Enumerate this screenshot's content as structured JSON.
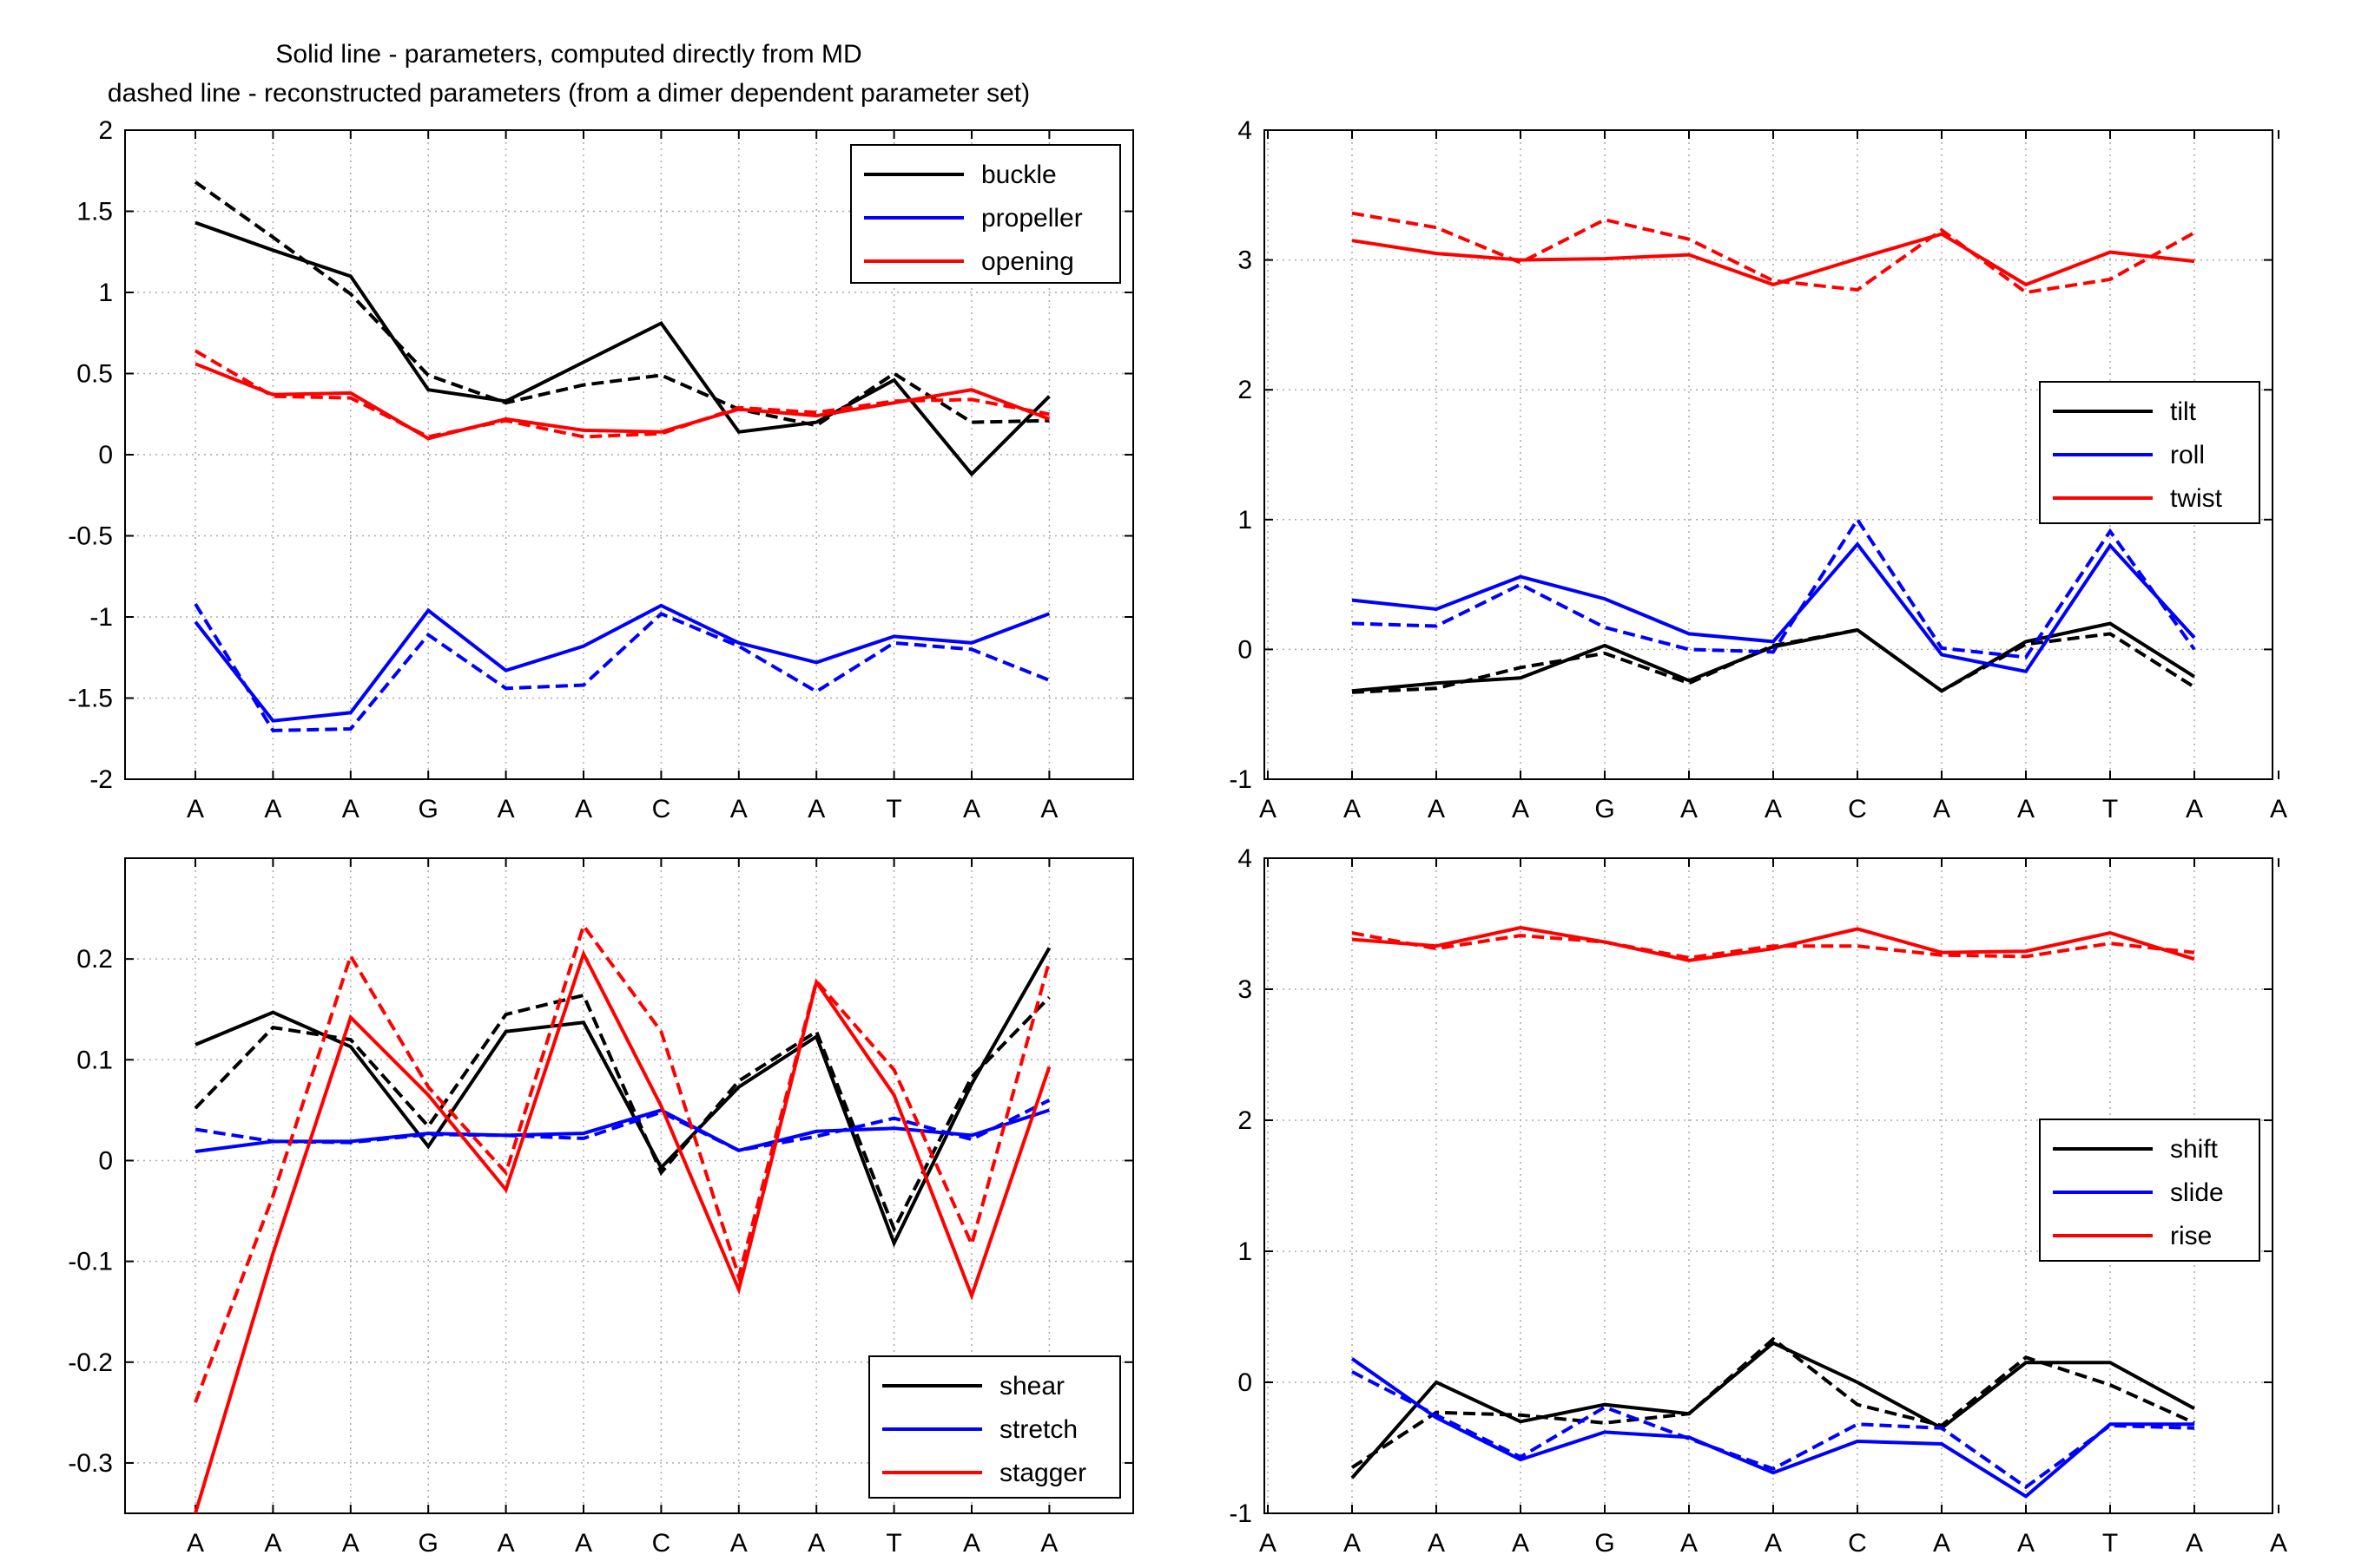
{
  "figure_title": {
    "line1": "Solid line - parameters, computed directly from MD",
    "line2": "dashed line - reconstructed parameters (from a dimer dependent parameter set)"
  },
  "chart_data": [
    {
      "type": "line",
      "id": "base-pair-rotational",
      "categories": [
        "A",
        "A",
        "A",
        "G",
        "A",
        "A",
        "C",
        "A",
        "A",
        "T",
        "A",
        "A"
      ],
      "ylim": [
        -2,
        2
      ],
      "yticks": [
        -2,
        -1.5,
        -1,
        -0.5,
        0,
        0.5,
        1,
        1.5,
        2
      ],
      "ytick_labels": [
        "-2",
        "-1.5",
        "-1",
        "-0.5",
        "0",
        "0.5",
        "1",
        "1.5",
        "2"
      ],
      "xstart": 1,
      "grid": true,
      "legend_position": "top-right",
      "series": [
        {
          "name": "buckle",
          "color": "#000000",
          "style": "solid",
          "x": [
            1,
            2,
            3,
            4,
            5,
            6,
            7,
            8,
            9,
            10,
            11,
            12
          ],
          "values": [
            1.43,
            1.26,
            1.1,
            0.4,
            0.33,
            0.57,
            0.81,
            0.14,
            0.2,
            0.46,
            -0.12,
            0.36
          ]
        },
        {
          "name": "buckle",
          "color": "#000000",
          "style": "dashed",
          "x": [
            1,
            2,
            3,
            4,
            5,
            6,
            7,
            8,
            9,
            10,
            11,
            12
          ],
          "values": [
            1.68,
            1.34,
            0.99,
            0.49,
            0.32,
            0.43,
            0.49,
            0.28,
            0.18,
            0.5,
            0.2,
            0.21
          ]
        },
        {
          "name": "propeller",
          "color": "#0000ff",
          "style": "solid",
          "x": [
            1,
            2,
            3,
            4,
            5,
            6,
            7,
            8,
            9,
            10,
            11,
            12
          ],
          "values": [
            -1.03,
            -1.64,
            -1.59,
            -0.96,
            -1.33,
            -1.18,
            -0.93,
            -1.16,
            -1.28,
            -1.12,
            -1.16,
            -0.98
          ]
        },
        {
          "name": "propeller",
          "color": "#0000ff",
          "style": "dashed",
          "x": [
            1,
            2,
            3,
            4,
            5,
            6,
            7,
            8,
            9,
            10,
            11,
            12
          ],
          "values": [
            -0.92,
            -1.7,
            -1.69,
            -1.11,
            -1.44,
            -1.42,
            -0.98,
            -1.18,
            -1.46,
            -1.16,
            -1.2,
            -1.39
          ]
        },
        {
          "name": "opening",
          "color": "#ff0000",
          "style": "solid",
          "x": [
            1,
            2,
            3,
            4,
            5,
            6,
            7,
            8,
            9,
            10,
            11,
            12
          ],
          "values": [
            0.56,
            0.37,
            0.38,
            0.1,
            0.22,
            0.15,
            0.14,
            0.28,
            0.24,
            0.32,
            0.4,
            0.22
          ]
        },
        {
          "name": "opening",
          "color": "#ff0000",
          "style": "dashed",
          "x": [
            1,
            2,
            3,
            4,
            5,
            6,
            7,
            8,
            9,
            10,
            11,
            12
          ],
          "values": [
            0.64,
            0.36,
            0.35,
            0.11,
            0.21,
            0.11,
            0.13,
            0.29,
            0.26,
            0.33,
            0.34,
            0.25
          ]
        }
      ],
      "legend": [
        {
          "label": "buckle",
          "color": "#000000"
        },
        {
          "label": "propeller",
          "color": "#0000ff"
        },
        {
          "label": "opening",
          "color": "#ff0000"
        }
      ]
    },
    {
      "type": "line",
      "id": "step-rotational",
      "categories": [
        "A",
        "A",
        "A",
        "G",
        "A",
        "A",
        "C",
        "A",
        "A",
        "T",
        "A",
        "A"
      ],
      "ylim": [
        -1,
        4
      ],
      "yticks": [
        -1,
        0,
        1,
        2,
        3,
        4
      ],
      "ytick_labels": [
        "-1",
        "0",
        "1",
        "2",
        "3",
        "4"
      ],
      "xstart": 0,
      "grid": true,
      "legend_position": "right",
      "series": [
        {
          "name": "tilt",
          "color": "#000000",
          "style": "solid",
          "x": [
            1,
            2,
            3,
            4,
            5,
            6,
            7,
            8,
            9,
            10,
            11
          ],
          "values": [
            -0.32,
            -0.26,
            -0.22,
            0.03,
            -0.24,
            0.02,
            0.15,
            -0.32,
            0.06,
            0.2,
            -0.21
          ]
        },
        {
          "name": "tilt",
          "color": "#000000",
          "style": "dashed",
          "x": [
            1,
            2,
            3,
            4,
            5,
            6,
            7,
            8,
            9,
            10,
            11
          ],
          "values": [
            -0.33,
            -0.3,
            -0.14,
            -0.03,
            -0.26,
            0.03,
            0.15,
            -0.32,
            0.04,
            0.12,
            -0.29
          ]
        },
        {
          "name": "roll",
          "color": "#0000ff",
          "style": "solid",
          "x": [
            1,
            2,
            3,
            4,
            5,
            6,
            7,
            8,
            9,
            10,
            11
          ],
          "values": [
            0.38,
            0.31,
            0.56,
            0.39,
            0.12,
            0.06,
            0.81,
            -0.04,
            -0.17,
            0.8,
            0.09
          ]
        },
        {
          "name": "roll",
          "color": "#0000ff",
          "style": "dashed",
          "x": [
            1,
            2,
            3,
            4,
            5,
            6,
            7,
            8,
            9,
            10,
            11
          ],
          "values": [
            0.2,
            0.18,
            0.5,
            0.17,
            0.0,
            -0.02,
            1.0,
            0.01,
            -0.06,
            0.91,
            0.0
          ]
        },
        {
          "name": "twist",
          "color": "#ff0000",
          "style": "solid",
          "x": [
            1,
            2,
            3,
            4,
            5,
            6,
            7,
            8,
            9,
            10,
            11
          ],
          "values": [
            3.15,
            3.05,
            3.0,
            3.01,
            3.04,
            2.81,
            3.01,
            3.2,
            2.81,
            3.06,
            2.99
          ]
        },
        {
          "name": "twist",
          "color": "#ff0000",
          "style": "dashed",
          "x": [
            1,
            2,
            3,
            4,
            5,
            6,
            7,
            8,
            9,
            10,
            11
          ],
          "values": [
            3.36,
            3.25,
            2.98,
            3.31,
            3.16,
            2.84,
            2.77,
            3.23,
            2.75,
            2.85,
            3.21
          ]
        }
      ],
      "legend": [
        {
          "label": "tilt",
          "color": "#000000"
        },
        {
          "label": "roll",
          "color": "#0000ff"
        },
        {
          "label": "twist",
          "color": "#ff0000"
        }
      ]
    },
    {
      "type": "line",
      "id": "base-pair-translational",
      "categories": [
        "A",
        "A",
        "A",
        "G",
        "A",
        "A",
        "C",
        "A",
        "A",
        "T",
        "A",
        "A"
      ],
      "ylim": [
        -0.35,
        0.3
      ],
      "yticks": [
        -0.3,
        -0.2,
        -0.1,
        0,
        0.1,
        0.2
      ],
      "ytick_labels": [
        "-0.3",
        "-0.2",
        "-0.1",
        "0",
        "0.1",
        "0.2"
      ],
      "xstart": 1,
      "grid": true,
      "legend_position": "bottom-right",
      "series": [
        {
          "name": "shear",
          "color": "#000000",
          "style": "solid",
          "x": [
            1,
            2,
            3,
            4,
            5,
            6,
            7,
            8,
            9,
            10,
            11,
            12
          ],
          "values": [
            0.115,
            0.147,
            0.113,
            0.014,
            0.128,
            0.137,
            -0.007,
            0.073,
            0.123,
            -0.082,
            0.076,
            0.211
          ]
        },
        {
          "name": "shear",
          "color": "#000000",
          "style": "dashed",
          "x": [
            1,
            2,
            3,
            4,
            5,
            6,
            7,
            8,
            9,
            10,
            11,
            12
          ],
          "values": [
            0.052,
            0.132,
            0.12,
            0.034,
            0.145,
            0.164,
            -0.012,
            0.079,
            0.128,
            -0.068,
            0.083,
            0.162
          ]
        },
        {
          "name": "stretch",
          "color": "#0000ff",
          "style": "solid",
          "x": [
            1,
            2,
            3,
            4,
            5,
            6,
            7,
            8,
            9,
            10,
            11,
            12
          ],
          "values": [
            0.009,
            0.019,
            0.019,
            0.027,
            0.025,
            0.027,
            0.05,
            0.01,
            0.029,
            0.032,
            0.025,
            0.05
          ]
        },
        {
          "name": "stretch",
          "color": "#0000ff",
          "style": "dashed",
          "x": [
            1,
            2,
            3,
            4,
            5,
            6,
            7,
            8,
            9,
            10,
            11,
            12
          ],
          "values": [
            0.031,
            0.019,
            0.018,
            0.026,
            0.025,
            0.022,
            0.048,
            0.01,
            0.024,
            0.042,
            0.021,
            0.06
          ]
        },
        {
          "name": "stagger",
          "color": "#ff0000",
          "style": "solid",
          "x": [
            1,
            2,
            3,
            4,
            5,
            6,
            7,
            8,
            9,
            10,
            11,
            12
          ],
          "values": [
            -0.35,
            -0.092,
            0.142,
            0.065,
            -0.029,
            0.205,
            0.054,
            -0.128,
            0.177,
            0.065,
            -0.134,
            0.093
          ]
        },
        {
          "name": "stagger",
          "color": "#ff0000",
          "style": "dashed",
          "x": [
            1,
            2,
            3,
            4,
            5,
            6,
            7,
            8,
            9,
            10,
            11,
            12
          ],
          "values": [
            -0.24,
            -0.035,
            0.203,
            0.073,
            -0.012,
            0.233,
            0.128,
            -0.115,
            0.178,
            0.09,
            -0.083,
            0.198
          ]
        }
      ],
      "legend": [
        {
          "label": "shear",
          "color": "#000000"
        },
        {
          "label": "stretch",
          "color": "#0000ff"
        },
        {
          "label": "stagger",
          "color": "#ff0000"
        }
      ]
    },
    {
      "type": "line",
      "id": "step-translational",
      "categories": [
        "A",
        "A",
        "A",
        "G",
        "A",
        "A",
        "C",
        "A",
        "A",
        "T",
        "A",
        "A"
      ],
      "ylim": [
        -1,
        4
      ],
      "yticks": [
        -1,
        0,
        1,
        2,
        3,
        4
      ],
      "ytick_labels": [
        "-1",
        "0",
        "1",
        "2",
        "3",
        "4"
      ],
      "xstart": 0,
      "grid": true,
      "legend_position": "right",
      "series": [
        {
          "name": "shift",
          "color": "#000000",
          "style": "solid",
          "x": [
            1,
            2,
            3,
            4,
            5,
            6,
            7,
            8,
            9,
            10,
            11
          ],
          "values": [
            -0.73,
            0.0,
            -0.3,
            -0.17,
            -0.24,
            0.3,
            0.0,
            -0.35,
            0.15,
            0.15,
            -0.2
          ]
        },
        {
          "name": "shift",
          "color": "#000000",
          "style": "dashed",
          "x": [
            1,
            2,
            3,
            4,
            5,
            6,
            7,
            8,
            9,
            10,
            11
          ],
          "values": [
            -0.65,
            -0.23,
            -0.25,
            -0.31,
            -0.24,
            0.33,
            -0.17,
            -0.33,
            0.19,
            -0.02,
            -0.31
          ]
        },
        {
          "name": "slide",
          "color": "#0000ff",
          "style": "solid",
          "x": [
            1,
            2,
            3,
            4,
            5,
            6,
            7,
            8,
            9,
            10,
            11
          ],
          "values": [
            0.18,
            -0.27,
            -0.59,
            -0.38,
            -0.42,
            -0.69,
            -0.45,
            -0.47,
            -0.87,
            -0.32,
            -0.32
          ]
        },
        {
          "name": "slide",
          "color": "#0000ff",
          "style": "dashed",
          "x": [
            1,
            2,
            3,
            4,
            5,
            6,
            7,
            8,
            9,
            10,
            11
          ],
          "values": [
            0.08,
            -0.25,
            -0.57,
            -0.19,
            -0.43,
            -0.66,
            -0.32,
            -0.35,
            -0.8,
            -0.33,
            -0.35
          ]
        },
        {
          "name": "rise",
          "color": "#ff0000",
          "style": "solid",
          "x": [
            1,
            2,
            3,
            4,
            5,
            6,
            7,
            8,
            9,
            10,
            11
          ],
          "values": [
            3.38,
            3.33,
            3.47,
            3.36,
            3.22,
            3.31,
            3.46,
            3.28,
            3.29,
            3.43,
            3.23
          ]
        },
        {
          "name": "rise",
          "color": "#ff0000",
          "style": "dashed",
          "x": [
            1,
            2,
            3,
            4,
            5,
            6,
            7,
            8,
            9,
            10,
            11
          ],
          "values": [
            3.43,
            3.31,
            3.41,
            3.36,
            3.24,
            3.33,
            3.33,
            3.26,
            3.25,
            3.35,
            3.28
          ]
        }
      ],
      "legend": [
        {
          "label": "shift",
          "color": "#000000"
        },
        {
          "label": "slide",
          "color": "#0000ff"
        },
        {
          "label": "rise",
          "color": "#ff0000"
        }
      ]
    }
  ]
}
